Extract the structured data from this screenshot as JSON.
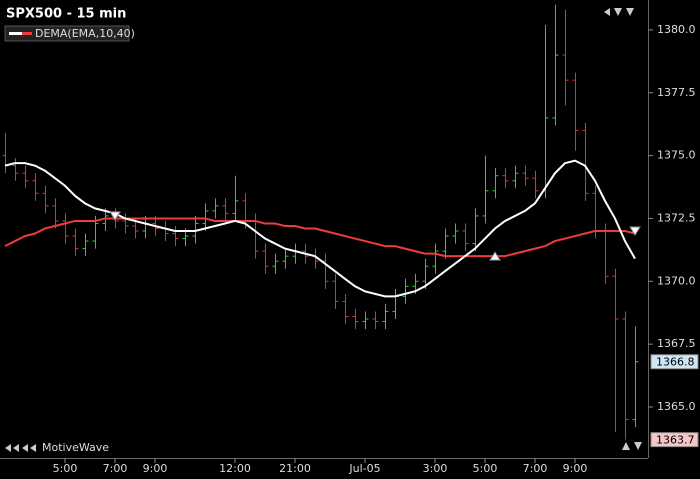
{
  "chart_data": {
    "type": "ohlc",
    "title": "SPX500 - 15 min",
    "watermark": "MotiveWave",
    "categories": [
      null,
      null,
      null,
      null,
      null,
      null,
      "5:00",
      null,
      null,
      null,
      null,
      "7:00",
      null,
      null,
      null,
      "9:00",
      null,
      null,
      null,
      null,
      null,
      null,
      null,
      "12:00",
      null,
      null,
      null,
      null,
      null,
      "21:00",
      null,
      null,
      null,
      null,
      null,
      null,
      "Jul-05",
      null,
      null,
      null,
      null,
      null,
      null,
      "3:00",
      null,
      null,
      null,
      null,
      "5:00",
      null,
      null,
      null,
      null,
      "7:00",
      null,
      null,
      null,
      "9:00",
      null,
      null,
      null,
      null,
      null,
      null
    ],
    "open": [
      1375.0,
      1374.6,
      1374.3,
      1374.0,
      1373.5,
      1373.0,
      1372.4,
      1371.8,
      1371.3,
      1371.6,
      1372.3,
      1372.6,
      1372.4,
      1372.2,
      1372.0,
      1372.3,
      1372.1,
      1371.9,
      1371.7,
      1371.8,
      1372.3,
      1372.8,
      1373.0,
      1372.7,
      1373.2,
      1372.4,
      1371.2,
      1370.6,
      1370.8,
      1371.0,
      1371.2,
      1371.0,
      1370.8,
      1370.0,
      1369.2,
      1368.6,
      1368.4,
      1368.5,
      1368.4,
      1368.8,
      1369.4,
      1369.8,
      1370.0,
      1370.6,
      1371.2,
      1371.8,
      1372.0,
      1371.5,
      1372.6,
      1373.6,
      1374.2,
      1374.0,
      1374.3,
      1374.1,
      1373.6,
      1376.5,
      1379.0,
      1378.0,
      1376.0,
      1373.5,
      1372.0,
      1370.2,
      1368.5,
      1364.5
    ],
    "high": [
      1375.9,
      1374.9,
      1374.6,
      1374.3,
      1373.8,
      1373.3,
      1372.7,
      1372.1,
      1371.9,
      1372.6,
      1372.9,
      1372.9,
      1372.7,
      1372.5,
      1372.6,
      1372.6,
      1372.4,
      1372.2,
      1372.1,
      1372.6,
      1373.1,
      1373.3,
      1373.3,
      1374.2,
      1373.5,
      1372.7,
      1371.5,
      1371.1,
      1371.3,
      1371.5,
      1371.5,
      1371.3,
      1371.1,
      1370.3,
      1369.5,
      1368.9,
      1368.8,
      1368.8,
      1369.1,
      1369.7,
      1370.1,
      1370.3,
      1370.9,
      1371.5,
      1372.1,
      1372.3,
      1372.3,
      1372.9,
      1375.0,
      1374.5,
      1374.5,
      1374.6,
      1374.6,
      1374.4,
      1380.2,
      1381.0,
      1380.8,
      1378.3,
      1376.3,
      1373.8,
      1372.3,
      1370.5,
      1368.8,
      1368.2
    ],
    "low": [
      1374.3,
      1374.0,
      1373.7,
      1373.2,
      1372.7,
      1372.1,
      1371.5,
      1371.0,
      1371.0,
      1371.3,
      1372.0,
      1372.1,
      1371.9,
      1371.7,
      1371.7,
      1371.8,
      1371.6,
      1371.4,
      1371.4,
      1371.5,
      1372.0,
      1372.5,
      1372.4,
      1372.4,
      1372.1,
      1370.9,
      1370.3,
      1370.3,
      1370.5,
      1370.7,
      1370.7,
      1370.5,
      1369.7,
      1368.9,
      1368.3,
      1368.1,
      1368.1,
      1368.1,
      1368.1,
      1368.5,
      1369.1,
      1369.5,
      1369.7,
      1370.3,
      1370.9,
      1371.5,
      1371.2,
      1371.2,
      1372.3,
      1373.3,
      1373.7,
      1373.7,
      1373.8,
      1373.3,
      1373.3,
      1376.2,
      1377.0,
      1375.2,
      1373.2,
      1371.7,
      1369.9,
      1364.0,
      1363.7,
      1364.2
    ],
    "close": [
      1374.6,
      1374.3,
      1374.0,
      1373.5,
      1373.0,
      1372.4,
      1371.8,
      1371.3,
      1371.6,
      1372.3,
      1372.6,
      1372.4,
      1372.2,
      1372.0,
      1372.3,
      1372.1,
      1371.9,
      1371.7,
      1371.8,
      1372.3,
      1372.8,
      1373.0,
      1372.7,
      1373.2,
      1372.4,
      1371.2,
      1370.6,
      1370.8,
      1371.0,
      1371.2,
      1371.0,
      1370.8,
      1370.0,
      1369.2,
      1368.6,
      1368.4,
      1368.5,
      1368.4,
      1368.8,
      1369.4,
      1369.8,
      1370.0,
      1370.6,
      1371.2,
      1371.8,
      1372.0,
      1371.5,
      1372.6,
      1373.6,
      1374.2,
      1374.0,
      1374.3,
      1374.1,
      1373.6,
      1376.5,
      1379.0,
      1378.0,
      1376.0,
      1373.5,
      1372.0,
      1370.2,
      1368.5,
      1364.5,
      1366.8
    ],
    "up_color": "#33cc33",
    "down_color": "#dd3333",
    "indicator": {
      "name": "DEMA(EMA,10,40)",
      "fast": {
        "color": "#ffffff",
        "values": [
          1374.6,
          1374.7,
          1374.7,
          1374.6,
          1374.4,
          1374.1,
          1373.8,
          1373.4,
          1373.1,
          1372.9,
          1372.8,
          1372.7,
          1372.5,
          1372.4,
          1372.3,
          1372.2,
          1372.1,
          1372.0,
          1372.0,
          1372.0,
          1372.1,
          1372.2,
          1372.3,
          1372.4,
          1372.3,
          1372.0,
          1371.7,
          1371.5,
          1371.3,
          1371.2,
          1371.1,
          1371.0,
          1370.7,
          1370.4,
          1370.1,
          1369.8,
          1369.6,
          1369.5,
          1369.4,
          1369.4,
          1369.5,
          1369.6,
          1369.8,
          1370.1,
          1370.4,
          1370.7,
          1371.0,
          1371.3,
          1371.7,
          1372.1,
          1372.4,
          1372.6,
          1372.8,
          1373.1,
          1373.7,
          1374.3,
          1374.7,
          1374.8,
          1374.6,
          1374.0,
          1373.2,
          1372.5,
          1371.6,
          1370.9
        ]
      },
      "slow": {
        "color": "#ee3b3b",
        "values": [
          1371.4,
          1371.6,
          1371.8,
          1371.9,
          1372.1,
          1372.2,
          1372.3,
          1372.4,
          1372.4,
          1372.4,
          1372.5,
          1372.5,
          1372.5,
          1372.5,
          1372.5,
          1372.5,
          1372.5,
          1372.5,
          1372.5,
          1372.5,
          1372.5,
          1372.4,
          1372.4,
          1372.4,
          1372.4,
          1372.4,
          1372.3,
          1372.3,
          1372.2,
          1372.2,
          1372.1,
          1372.1,
          1372.0,
          1371.9,
          1371.8,
          1371.7,
          1371.6,
          1371.5,
          1371.4,
          1371.4,
          1371.3,
          1371.2,
          1371.1,
          1371.1,
          1371.0,
          1371.0,
          1371.0,
          1371.0,
          1371.0,
          1371.0,
          1371.0,
          1371.1,
          1371.2,
          1371.3,
          1371.4,
          1371.6,
          1371.7,
          1371.8,
          1371.9,
          1372.0,
          1372.0,
          1372.0,
          1372.0,
          1371.9
        ]
      }
    },
    "signals": [
      {
        "index": 11,
        "value": 1372.6,
        "direction": "down"
      },
      {
        "index": 49,
        "value": 1371.0,
        "direction": "up"
      },
      {
        "index": 63,
        "value": 1372.0,
        "direction": "down"
      }
    ],
    "last_price": 1366.8,
    "low_price": 1363.7,
    "ylim": [
      1362.97,
      1381.19
    ],
    "yticks": [
      {
        "value": 1365,
        "label": "1365.0"
      },
      {
        "value": 1367.5,
        "label": "1367.5"
      },
      {
        "value": 1370,
        "label": "1370.0"
      },
      {
        "value": 1372.5,
        "label": "1372.5"
      },
      {
        "value": 1375,
        "label": "1375.0"
      },
      {
        "value": 1377.5,
        "label": "1377.5"
      },
      {
        "value": 1380,
        "label": "1380.0"
      }
    ]
  }
}
